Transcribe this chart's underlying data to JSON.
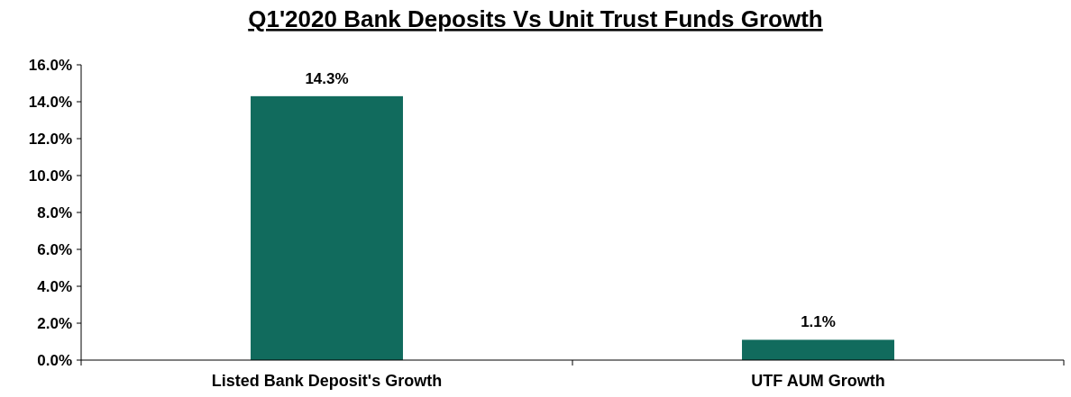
{
  "chart_data": {
    "type": "bar",
    "title": "Q1'2020 Bank Deposits Vs Unit Trust Funds Growth",
    "categories": [
      "Listed Bank Deposit's Growth",
      "UTF AUM Growth"
    ],
    "values": [
      14.3,
      1.1
    ],
    "color": "#116b5d",
    "value_labels": [
      "14.3%",
      "1.1%"
    ],
    "ylim": [
      0,
      16
    ],
    "yticks": [
      {
        "value": 0,
        "label": "0.0%"
      },
      {
        "value": 2,
        "label": "2.0%"
      },
      {
        "value": 4,
        "label": "4.0%"
      },
      {
        "value": 6,
        "label": "6.0%"
      },
      {
        "value": 8,
        "label": "8.0%"
      },
      {
        "value": 10,
        "label": "10.0%"
      },
      {
        "value": 12,
        "label": "12.0%"
      },
      {
        "value": 14,
        "label": "14.0%"
      },
      {
        "value": 16,
        "label": "16.0%"
      }
    ],
    "grid": false
  }
}
